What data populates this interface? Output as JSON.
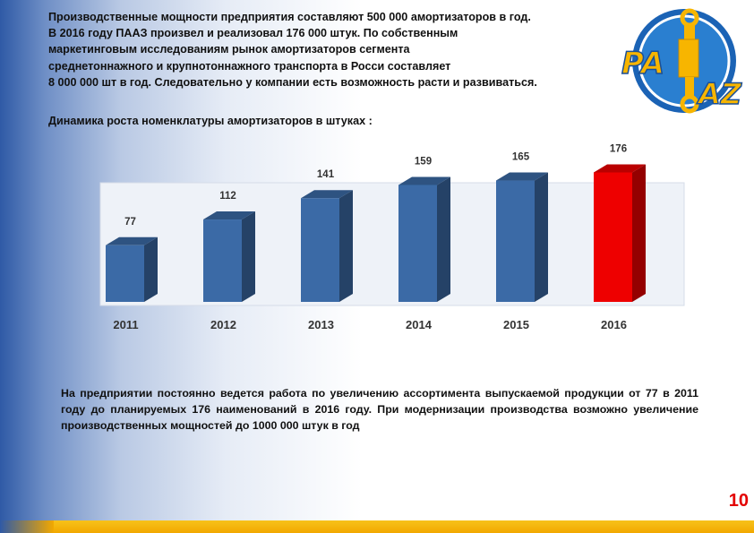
{
  "intro_lines": [
    "Производственные мощности предприятия составляют 500 000  амортизаторов в год.",
    "В 2016 году ПААЗ произвел и реализовал 176 000 штук. По собственным",
    "маркетинговым исследованиям  рынок амортизаторов сегмента",
    "среднетоннажного и крупнотоннажного транспорта в Росси составляет",
    "8 000 000 шт в год. Следовательно у компании есть возможность расти и развиваться."
  ],
  "logo": {
    "text_top": "PA",
    "text_bottom": "AZ",
    "colors": {
      "ring": "#1b63b5",
      "inner": "#2a7fd0",
      "text": "#f7b500",
      "absorber": "#f7b500"
    }
  },
  "subtitle": "Динамика роста номенклатуры амортизаторов  в штуках :",
  "chart_data": {
    "type": "bar",
    "categories": [
      "2011",
      "2012",
      "2013",
      "2014",
      "2015",
      "2016"
    ],
    "values": [
      77,
      112,
      141,
      159,
      165,
      176
    ],
    "ylim": [
      0,
      180
    ],
    "grid": false,
    "legend": "none",
    "colors": {
      "default": "#3b6aa6",
      "highlight": "#ee0000"
    },
    "highlight_index": 5
  },
  "bottom_text": "На предприятии постоянно ведется работа по увеличению ассортимента выпускаемой продукции от 77 в 2011 году до планируемых 176 наименований в 2016 году. При модернизации производства возможно увеличение производственных мощностей до 1000 000 штук в год",
  "page_number": "10"
}
